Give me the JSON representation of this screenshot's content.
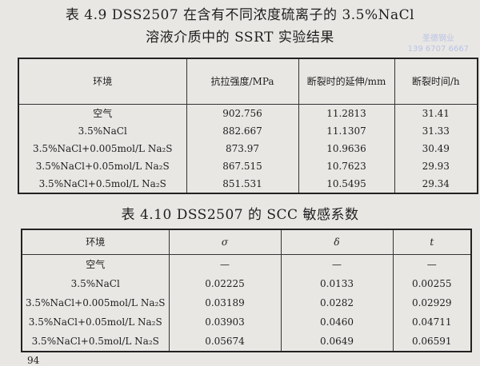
{
  "table1": {
    "caption_line1": "表 4.9   DSS2507 在含有不同浓度硫离子的 3.5%NaCl",
    "caption_line2": "溶液介质中的 SSRT 实验结果",
    "headers": [
      "环境",
      "抗拉强度/MPa",
      "断裂时的延伸/mm",
      "断裂时间/h"
    ],
    "rows": [
      [
        "空气",
        "902.756",
        "11.2813",
        "31.41"
      ],
      [
        "3.5%NaCl",
        "882.667",
        "11.1307",
        "31.33"
      ],
      [
        "3.5%NaCl+0.005mol/L Na₂S",
        "873.97",
        "10.9636",
        "30.49"
      ],
      [
        "3.5%NaCl+0.05mol/L Na₂S",
        "867.515",
        "10.7623",
        "29.93"
      ],
      [
        "3.5%NaCl+0.5mol/L Na₂S",
        "851.531",
        "10.5495",
        "29.34"
      ]
    ]
  },
  "table2": {
    "caption": "表 4.10   DSS2507 的 SCC 敏感系数",
    "headers": [
      "环境",
      "σ",
      "δ",
      "t"
    ],
    "rows": [
      [
        "空气",
        "—",
        "—",
        "—"
      ],
      [
        "3.5%NaCl",
        "0.02225",
        "0.0133",
        "0.00255"
      ],
      [
        "3.5%NaCl+0.005mol/L Na₂S",
        "0.03189",
        "0.0282",
        "0.02929"
      ],
      [
        "3.5%NaCl+0.05mol/L Na₂S",
        "0.03903",
        "0.0460",
        "0.04711"
      ],
      [
        "3.5%NaCl+0.5mol/L Na₂S",
        "0.05674",
        "0.0649",
        "0.06591"
      ]
    ]
  },
  "watermark": {
    "line1": "圣德钢业",
    "line2": "139 6707 6667"
  },
  "page_number": "94"
}
